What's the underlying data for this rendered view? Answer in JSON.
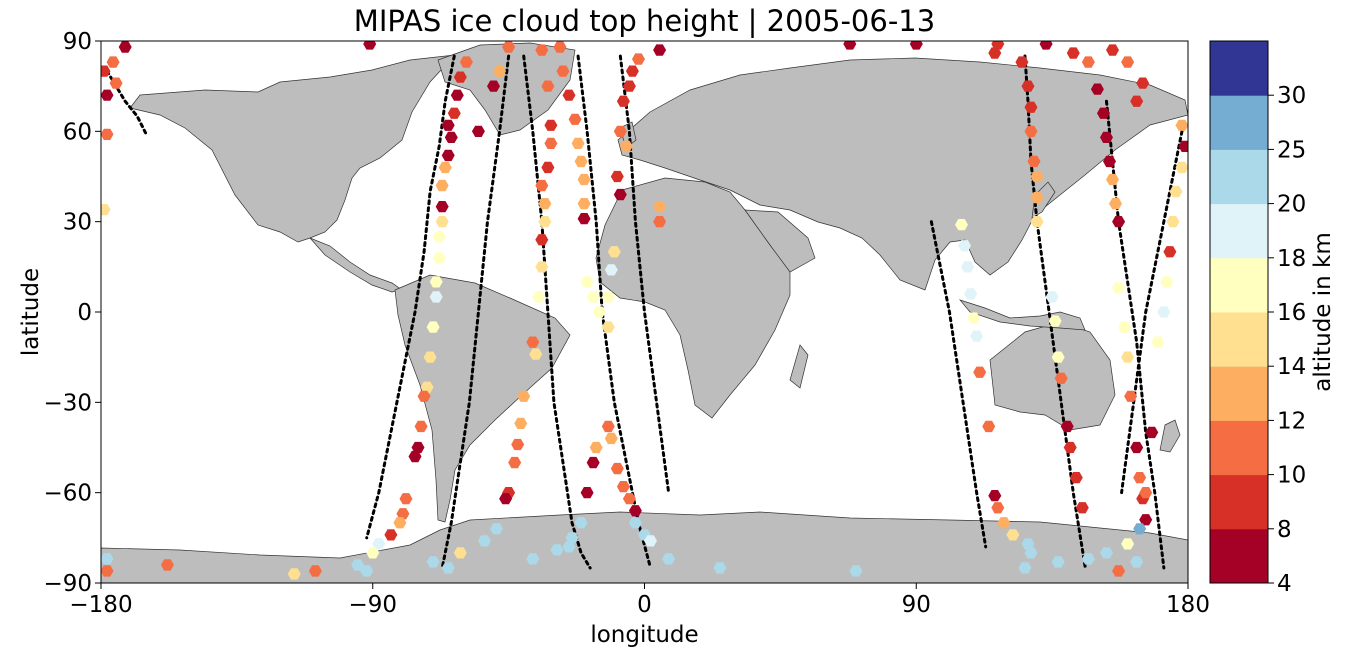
{
  "chart_data": {
    "type": "scatter",
    "title": "MIPAS ice cloud top height | 2005-06-13",
    "xlabel": "longitude",
    "ylabel": "latitude",
    "xlim": [
      -180,
      180
    ],
    "ylim": [
      -90,
      90
    ],
    "xticks": [
      -180,
      -90,
      0,
      90,
      180
    ],
    "xtick_labels": [
      "−180",
      "−90",
      "0",
      "90",
      "180"
    ],
    "yticks": [
      90,
      60,
      30,
      0,
      -30,
      -60,
      -90
    ],
    "ytick_labels": [
      "90",
      "60",
      "30",
      "0",
      "−30",
      "−60",
      "−90"
    ],
    "grid": false,
    "background_map": "world-land-outline",
    "land_color": "#bdbdbd",
    "colorbar": {
      "label": "altitude in km",
      "levels": [
        4,
        8,
        10,
        12,
        14,
        16,
        18,
        20,
        25,
        30
      ],
      "tick_labels": [
        "4",
        "8",
        "10",
        "12",
        "14",
        "16",
        "18",
        "20",
        "25",
        "30"
      ],
      "colors": [
        "#a50026",
        "#d73027",
        "#f46d43",
        "#fdae61",
        "#fee090",
        "#ffffbf",
        "#e0f3f8",
        "#abd9e9",
        "#74add1",
        "#313695"
      ]
    },
    "track_marker_color": "#000000",
    "tracks": [
      {
        "lon": [
          -178,
          -175,
          -172,
          -168,
          -165
        ],
        "lat": [
          80,
          75,
          70,
          65,
          59
        ]
      },
      {
        "lon": [
          -63,
          -66,
          -68,
          -71,
          -73,
          -76,
          -80,
          -84,
          -88,
          -92
        ],
        "lat": [
          85,
          70,
          55,
          40,
          20,
          0,
          -20,
          -40,
          -60,
          -75
        ]
      },
      {
        "lon": [
          -45,
          -48,
          -52,
          -55,
          -58,
          -61,
          -64,
          -67
        ],
        "lat": [
          85,
          60,
          30,
          0,
          -30,
          -50,
          -70,
          -85
        ]
      },
      {
        "lon": [
          -40,
          -37,
          -34,
          -32,
          -30,
          -27,
          -24,
          -21,
          -18
        ],
        "lat": [
          85,
          60,
          30,
          0,
          -30,
          -50,
          -70,
          -80,
          -85
        ]
      },
      {
        "lon": [
          -22,
          -19,
          -16,
          -14,
          -10,
          -6,
          -2,
          2
        ],
        "lat": [
          85,
          60,
          30,
          0,
          -30,
          -50,
          -70,
          -85
        ]
      },
      {
        "lon": [
          -8,
          -5,
          -3,
          0,
          4,
          8
        ],
        "lat": [
          85,
          60,
          30,
          0,
          -30,
          -60
        ]
      },
      {
        "lon": [
          95,
          98,
          101,
          104,
          107,
          110,
          113
        ],
        "lat": [
          30,
          15,
          0,
          -20,
          -40,
          -60,
          -78
        ]
      },
      {
        "lon": [
          126,
          127,
          128,
          130,
          134,
          138,
          142,
          146
        ],
        "lat": [
          85,
          70,
          50,
          30,
          0,
          -30,
          -60,
          -85
        ]
      },
      {
        "lon": [
          153,
          155,
          157,
          160,
          163,
          166,
          169,
          172
        ],
        "lat": [
          70,
          50,
          30,
          10,
          -10,
          -40,
          -60,
          -85
        ]
      },
      {
        "lon": [
          178,
          174,
          170,
          166,
          162,
          158
        ],
        "lat": [
          60,
          40,
          20,
          0,
          -30,
          -60
        ]
      }
    ],
    "points": [
      {
        "lon": -179,
        "lat": 80,
        "alt": 9
      },
      {
        "lon": -178,
        "lat": 72,
        "alt": 6
      },
      {
        "lon": -175,
        "lat": 76,
        "alt": 10
      },
      {
        "lon": -178,
        "lat": 59,
        "alt": 11
      },
      {
        "lon": -179,
        "lat": 34,
        "alt": 15
      },
      {
        "lon": -172,
        "lat": 88,
        "alt": 6
      },
      {
        "lon": -176,
        "lat": 83,
        "alt": 11
      },
      {
        "lon": -158,
        "lat": -84,
        "alt": 11
      },
      {
        "lon": -178,
        "lat": -82,
        "alt": 22
      },
      {
        "lon": -178,
        "lat": -86,
        "alt": 11
      },
      {
        "lon": -116,
        "lat": -87,
        "alt": 14
      },
      {
        "lon": -109,
        "lat": -86,
        "alt": 11
      },
      {
        "lon": -95,
        "lat": -84,
        "alt": 22
      },
      {
        "lon": -92,
        "lat": -86,
        "alt": 22
      },
      {
        "lon": -91,
        "lat": 89,
        "alt": 6
      },
      {
        "lon": -59,
        "lat": 83,
        "alt": 10
      },
      {
        "lon": -61,
        "lat": 78,
        "alt": 9
      },
      {
        "lon": -62,
        "lat": 72,
        "alt": 7
      },
      {
        "lon": -63,
        "lat": 66,
        "alt": 9
      },
      {
        "lon": -65,
        "lat": 62,
        "alt": 6
      },
      {
        "lon": -64,
        "lat": 58,
        "alt": 6
      },
      {
        "lon": -65,
        "lat": 52,
        "alt": 6
      },
      {
        "lon": -66,
        "lat": 48,
        "alt": 13
      },
      {
        "lon": -67,
        "lat": 42,
        "alt": 12
      },
      {
        "lon": -67,
        "lat": 35,
        "alt": 6
      },
      {
        "lon": -67,
        "lat": 30,
        "alt": 14
      },
      {
        "lon": -68,
        "lat": 25,
        "alt": 17
      },
      {
        "lon": -68,
        "lat": 18,
        "alt": 17
      },
      {
        "lon": -69,
        "lat": 10,
        "alt": 17
      },
      {
        "lon": -69,
        "lat": 5,
        "alt": 19
      },
      {
        "lon": -70,
        "lat": -5,
        "alt": 17
      },
      {
        "lon": -71,
        "lat": -15,
        "alt": 15
      },
      {
        "lon": -72,
        "lat": -25,
        "alt": 14
      },
      {
        "lon": -73,
        "lat": -28,
        "alt": 10
      },
      {
        "lon": -74,
        "lat": -38,
        "alt": 11
      },
      {
        "lon": -75,
        "lat": -45,
        "alt": 7
      },
      {
        "lon": -76,
        "lat": -48,
        "alt": 6
      },
      {
        "lon": -79,
        "lat": -62,
        "alt": 11
      },
      {
        "lon": -80,
        "lat": -67,
        "alt": 11
      },
      {
        "lon": -81,
        "lat": -70,
        "alt": 12
      },
      {
        "lon": -84,
        "lat": -74,
        "alt": 8
      },
      {
        "lon": -88,
        "lat": -77,
        "alt": 19
      },
      {
        "lon": -90,
        "lat": -80,
        "alt": 17
      },
      {
        "lon": -70,
        "lat": -83,
        "alt": 22
      },
      {
        "lon": -65,
        "lat": -85,
        "alt": 22
      },
      {
        "lon": -61,
        "lat": -80,
        "alt": 14
      },
      {
        "lon": -45,
        "lat": 88,
        "alt": 10
      },
      {
        "lon": -48,
        "lat": 80,
        "alt": 12
      },
      {
        "lon": -50,
        "lat": 75,
        "alt": 6
      },
      {
        "lon": -55,
        "lat": 60,
        "alt": 6
      },
      {
        "lon": -34,
        "lat": 87,
        "alt": 11
      },
      {
        "lon": -32,
        "lat": 75,
        "alt": 11
      },
      {
        "lon": -31,
        "lat": 62,
        "alt": 9
      },
      {
        "lon": -31,
        "lat": 56,
        "alt": 10
      },
      {
        "lon": -32,
        "lat": 48,
        "alt": 9
      },
      {
        "lon": -34,
        "lat": 42,
        "alt": 11
      },
      {
        "lon": -33,
        "lat": 36,
        "alt": 13
      },
      {
        "lon": -33,
        "lat": 30,
        "alt": 14
      },
      {
        "lon": -34,
        "lat": 24,
        "alt": 9
      },
      {
        "lon": -34,
        "lat": 15,
        "alt": 15
      },
      {
        "lon": -35,
        "lat": 5,
        "alt": 17
      },
      {
        "lon": -37,
        "lat": -10,
        "alt": 11
      },
      {
        "lon": -36,
        "lat": -14,
        "alt": 14
      },
      {
        "lon": -40,
        "lat": -28,
        "alt": 13
      },
      {
        "lon": -41,
        "lat": -37,
        "alt": 13
      },
      {
        "lon": -42,
        "lat": -44,
        "alt": 11
      },
      {
        "lon": -43,
        "lat": -50,
        "alt": 10
      },
      {
        "lon": -45,
        "lat": -60,
        "alt": 9
      },
      {
        "lon": -46,
        "lat": -62,
        "alt": 7
      },
      {
        "lon": -49,
        "lat": -72,
        "alt": 22
      },
      {
        "lon": -53,
        "lat": -76,
        "alt": 22
      },
      {
        "lon": -37,
        "lat": -82,
        "alt": 22
      },
      {
        "lon": -29,
        "lat": -79,
        "alt": 22
      },
      {
        "lon": -28,
        "lat": 88,
        "alt": 11
      },
      {
        "lon": -27,
        "lat": 80,
        "alt": 11
      },
      {
        "lon": -25,
        "lat": 72,
        "alt": 8
      },
      {
        "lon": -23,
        "lat": 64,
        "alt": 11
      },
      {
        "lon": -22,
        "lat": 56,
        "alt": 12
      },
      {
        "lon": -21,
        "lat": 50,
        "alt": 13
      },
      {
        "lon": -20,
        "lat": 44,
        "alt": 13
      },
      {
        "lon": -20,
        "lat": 36,
        "alt": 13
      },
      {
        "lon": -20,
        "lat": 31,
        "alt": 6
      },
      {
        "lon": -19,
        "lat": 10,
        "alt": 17
      },
      {
        "lon": -17,
        "lat": 5,
        "alt": 17
      },
      {
        "lon": -15,
        "lat": 0,
        "alt": 17
      },
      {
        "lon": -16,
        "lat": -45,
        "alt": 13
      },
      {
        "lon": -17,
        "lat": -50,
        "alt": 6
      },
      {
        "lon": -19,
        "lat": -60,
        "alt": 6
      },
      {
        "lon": -21,
        "lat": -70,
        "alt": 22
      },
      {
        "lon": -24,
        "lat": -75,
        "alt": 22
      },
      {
        "lon": -25,
        "lat": -78,
        "alt": 22
      },
      {
        "lon": -12,
        "lat": -38,
        "alt": 11
      },
      {
        "lon": -11,
        "lat": -42,
        "alt": 12
      },
      {
        "lon": -9,
        "lat": -52,
        "alt": 11
      },
      {
        "lon": -7,
        "lat": -58,
        "alt": 11
      },
      {
        "lon": -5,
        "lat": -62,
        "alt": 11
      },
      {
        "lon": -3,
        "lat": -66,
        "alt": 6
      },
      {
        "lon": -3,
        "lat": -70,
        "alt": 22
      },
      {
        "lon": 0,
        "lat": -74,
        "alt": 22
      },
      {
        "lon": 2,
        "lat": -76,
        "alt": 19
      },
      {
        "lon": 8,
        "lat": -82,
        "alt": 22
      },
      {
        "lon": 25,
        "lat": -85,
        "alt": 22
      },
      {
        "lon": -10,
        "lat": 20,
        "alt": 15
      },
      {
        "lon": -11,
        "lat": 14,
        "alt": 18
      },
      {
        "lon": -12,
        "lat": 5,
        "alt": 17
      },
      {
        "lon": -12,
        "lat": -5,
        "alt": 15
      },
      {
        "lon": -8,
        "lat": 60,
        "alt": 10
      },
      {
        "lon": -7,
        "lat": 70,
        "alt": 8
      },
      {
        "lon": -5,
        "lat": 75,
        "alt": 8
      },
      {
        "lon": -4,
        "lat": 80,
        "alt": 9
      },
      {
        "lon": -2,
        "lat": 84,
        "alt": 10
      },
      {
        "lon": 5,
        "lat": 87,
        "alt": 6
      },
      {
        "lon": -6,
        "lat": 55,
        "alt": 13
      },
      {
        "lon": -9,
        "lat": 45,
        "alt": 9
      },
      {
        "lon": -8,
        "lat": 39,
        "alt": 6
      },
      {
        "lon": 5,
        "lat": 30,
        "alt": 11
      },
      {
        "lon": 5,
        "lat": 35,
        "alt": 13
      },
      {
        "lon": 68,
        "lat": 89,
        "alt": 6
      },
      {
        "lon": 90,
        "lat": 89,
        "alt": 6
      },
      {
        "lon": 70,
        "lat": -86,
        "alt": 22
      },
      {
        "lon": 105,
        "lat": 29,
        "alt": 17
      },
      {
        "lon": 106,
        "lat": 22,
        "alt": 19
      },
      {
        "lon": 107,
        "lat": 15,
        "alt": 19
      },
      {
        "lon": 108,
        "lat": 6,
        "alt": 19
      },
      {
        "lon": 109,
        "lat": -2,
        "alt": 17
      },
      {
        "lon": 110,
        "lat": -8,
        "alt": 19
      },
      {
        "lon": 111,
        "lat": -20,
        "alt": 11
      },
      {
        "lon": 114,
        "lat": -38,
        "alt": 11
      },
      {
        "lon": 116,
        "lat": -61,
        "alt": 6
      },
      {
        "lon": 117,
        "lat": -65,
        "alt": 11
      },
      {
        "lon": 119,
        "lat": -70,
        "alt": 12
      },
      {
        "lon": 122,
        "lat": -74,
        "alt": 14
      },
      {
        "lon": 127,
        "lat": -77,
        "alt": 22
      },
      {
        "lon": 128,
        "lat": -80,
        "alt": 22
      },
      {
        "lon": 126,
        "lat": -85,
        "alt": 22
      },
      {
        "lon": 137,
        "lat": -83,
        "alt": 22
      },
      {
        "lon": 117,
        "lat": 89,
        "alt": 9
      },
      {
        "lon": 116,
        "lat": 86,
        "alt": 9
      },
      {
        "lon": 125,
        "lat": 83,
        "alt": 9
      },
      {
        "lon": 127,
        "lat": 75,
        "alt": 9
      },
      {
        "lon": 128,
        "lat": 68,
        "alt": 9
      },
      {
        "lon": 128,
        "lat": 60,
        "alt": 11
      },
      {
        "lon": 129,
        "lat": 50,
        "alt": 11
      },
      {
        "lon": 130,
        "lat": 45,
        "alt": 13
      },
      {
        "lon": 130,
        "lat": 38,
        "alt": 13
      },
      {
        "lon": 130,
        "lat": 30,
        "alt": 14
      },
      {
        "lon": 135,
        "lat": 5,
        "alt": 19
      },
      {
        "lon": 136,
        "lat": -3,
        "alt": 17
      },
      {
        "lon": 137,
        "lat": -15,
        "alt": 17
      },
      {
        "lon": 138,
        "lat": -22,
        "alt": 11
      },
      {
        "lon": 140,
        "lat": -38,
        "alt": 6
      },
      {
        "lon": 141,
        "lat": -45,
        "alt": 9
      },
      {
        "lon": 143,
        "lat": -55,
        "alt": 9
      },
      {
        "lon": 145,
        "lat": -65,
        "alt": 9
      },
      {
        "lon": 133,
        "lat": 89,
        "alt": 6
      },
      {
        "lon": 142,
        "lat": 86,
        "alt": 9
      },
      {
        "lon": 147,
        "lat": 83,
        "alt": 11
      },
      {
        "lon": 150,
        "lat": 74,
        "alt": 6
      },
      {
        "lon": 152,
        "lat": 66,
        "alt": 6
      },
      {
        "lon": 153,
        "lat": 58,
        "alt": 6
      },
      {
        "lon": 154,
        "lat": 50,
        "alt": 6
      },
      {
        "lon": 155,
        "lat": 44,
        "alt": 13
      },
      {
        "lon": 156,
        "lat": 36,
        "alt": 13
      },
      {
        "lon": 157,
        "lat": 30,
        "alt": 6
      },
      {
        "lon": 157,
        "lat": 8,
        "alt": 17
      },
      {
        "lon": 159,
        "lat": -5,
        "alt": 17
      },
      {
        "lon": 160,
        "lat": -15,
        "alt": 14
      },
      {
        "lon": 161,
        "lat": -28,
        "alt": 11
      },
      {
        "lon": 163,
        "lat": -45,
        "alt": 6
      },
      {
        "lon": 165,
        "lat": -62,
        "alt": 9
      },
      {
        "lon": 166,
        "lat": -69,
        "alt": 6
      },
      {
        "lon": 164,
        "lat": -72,
        "alt": 28
      },
      {
        "lon": 160,
        "lat": -77,
        "alt": 17
      },
      {
        "lon": 163,
        "lat": -83,
        "alt": 22
      },
      {
        "lon": 157,
        "lat": -86,
        "alt": 11
      },
      {
        "lon": 153,
        "lat": -80,
        "alt": 22
      },
      {
        "lon": 147,
        "lat": -82,
        "alt": 22
      },
      {
        "lon": 155,
        "lat": 87,
        "alt": 9
      },
      {
        "lon": 160,
        "lat": 83,
        "alt": 11
      },
      {
        "lon": 165,
        "lat": 76,
        "alt": 9
      },
      {
        "lon": 163,
        "lat": 70,
        "alt": 9
      },
      {
        "lon": 178,
        "lat": 62,
        "alt": 13
      },
      {
        "lon": 179,
        "lat": 55,
        "alt": 6
      },
      {
        "lon": 178,
        "lat": 48,
        "alt": 14
      },
      {
        "lon": 176,
        "lat": 40,
        "alt": 15
      },
      {
        "lon": 175,
        "lat": 30,
        "alt": 15
      },
      {
        "lon": 174,
        "lat": 20,
        "alt": 9
      },
      {
        "lon": 173,
        "lat": 10,
        "alt": 17
      },
      {
        "lon": 172,
        "lat": 0,
        "alt": 19
      },
      {
        "lon": 170,
        "lat": -10,
        "alt": 17
      },
      {
        "lon": 168,
        "lat": -40,
        "alt": 7
      },
      {
        "lon": 164,
        "lat": -55,
        "alt": 10
      },
      {
        "lon": 166,
        "lat": -60,
        "alt": 11
      }
    ]
  }
}
